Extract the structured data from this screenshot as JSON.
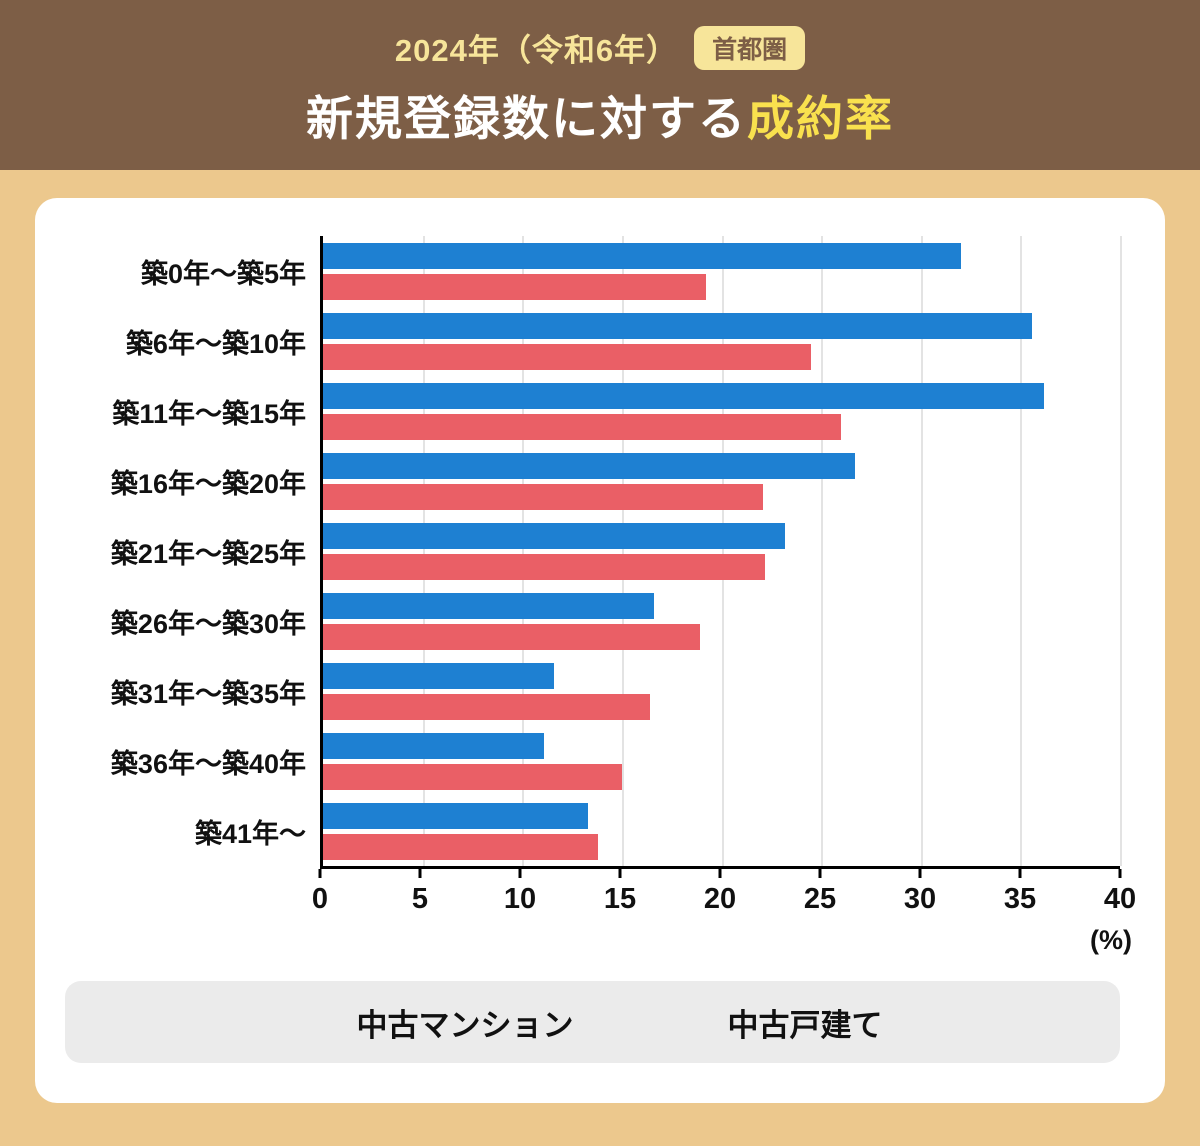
{
  "header": {
    "year_label": "2024年（令和6年）",
    "region_badge": "首都圏",
    "title_main": "新規登録数に対する",
    "title_highlight": "成約率"
  },
  "chart_data": {
    "type": "bar",
    "orientation": "horizontal",
    "title": "2024年（令和6年）首都圏 新規登録数に対する成約率",
    "categories": [
      "築0年〜築5年",
      "築6年〜築10年",
      "築11年〜築15年",
      "築16年〜築20年",
      "築21年〜築25年",
      "築26年〜築30年",
      "築31年〜築35年",
      "築36年〜築40年",
      "築41年〜"
    ],
    "series": [
      {
        "name": "中古マンション",
        "color": "#1e80d2",
        "values": [
          32.0,
          35.6,
          36.2,
          26.7,
          23.2,
          16.6,
          11.6,
          11.1,
          13.3
        ]
      },
      {
        "name": "中古戸建て",
        "color": "#ea5f66",
        "values": [
          19.2,
          24.5,
          26.0,
          22.1,
          22.2,
          18.9,
          16.4,
          15.0,
          13.8
        ]
      }
    ],
    "xlim": [
      0,
      40
    ],
    "xticks": [
      0,
      5,
      10,
      15,
      20,
      25,
      30,
      35,
      40
    ],
    "unit": "(%)",
    "grid": true,
    "legend_position": "bottom"
  },
  "theme": {
    "page_bg": "#ecc88d",
    "header_bg": "#7d5e46",
    "header_accent": "#f7e59a",
    "badge_text": "#7d5e46",
    "title_highlight": "#f9e14e",
    "card_bg": "#ffffff",
    "legend_bg": "#ebebeb",
    "grid_color": "#e3e3e3"
  }
}
